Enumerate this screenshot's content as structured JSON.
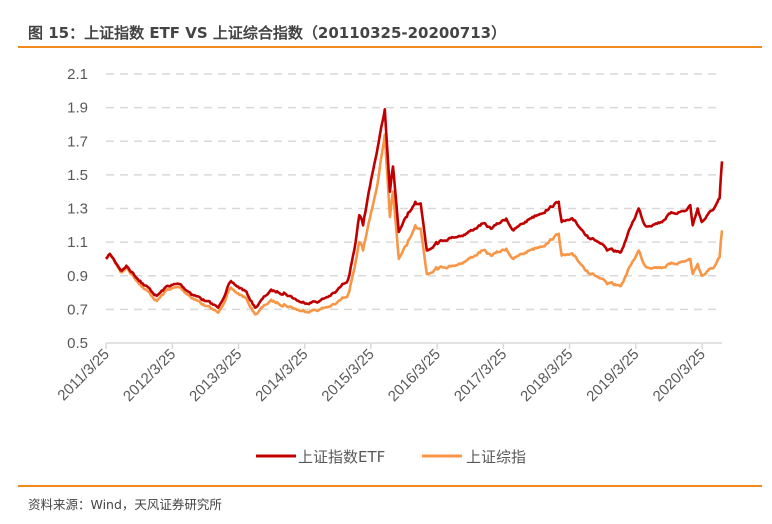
{
  "title": "图 15：上证指数 ETF VS 上证综合指数（20110325-20200713）",
  "source": "资料来源：Wind，天风证券研究所",
  "chart_data": {
    "type": "line",
    "title": "",
    "xlabel": "",
    "ylabel": "",
    "ylim": [
      0.5,
      2.1
    ],
    "yticks": [
      "0.5",
      "0.7",
      "0.9",
      "1.1",
      "1.3",
      "1.5",
      "1.7",
      "1.9",
      "2.1"
    ],
    "xrange": [
      "2011-03-25",
      "2020-07-13"
    ],
    "xticks": [
      "2011/3/25",
      "2012/3/25",
      "2013/3/25",
      "2014/3/25",
      "2015/3/25",
      "2016/3/25",
      "2017/3/25",
      "2018/3/25",
      "2019/3/25",
      "2020/3/25"
    ],
    "grid": "horizontal dashed",
    "legend_position": "bottom",
    "series": [
      {
        "name": "上证指数ETF",
        "color": "#c00000",
        "points": [
          [
            "2011-03-25",
            1.0
          ],
          [
            "2011-04-15",
            1.03
          ],
          [
            "2011-06-20",
            0.93
          ],
          [
            "2011-07-15",
            0.96
          ],
          [
            "2011-09-30",
            0.87
          ],
          [
            "2011-12-30",
            0.78
          ],
          [
            "2012-03-01",
            0.84
          ],
          [
            "2012-05-05",
            0.85
          ],
          [
            "2012-07-01",
            0.8
          ],
          [
            "2012-09-25",
            0.75
          ],
          [
            "2012-12-03",
            0.71
          ],
          [
            "2013-02-05",
            0.86
          ],
          [
            "2013-05-01",
            0.81
          ],
          [
            "2013-06-25",
            0.71
          ],
          [
            "2013-09-15",
            0.81
          ],
          [
            "2013-12-01",
            0.8
          ],
          [
            "2014-03-10",
            0.74
          ],
          [
            "2014-06-15",
            0.75
          ],
          [
            "2014-09-10",
            0.8
          ],
          [
            "2014-11-20",
            0.88
          ],
          [
            "2014-12-31",
            1.1
          ],
          [
            "2015-01-20",
            1.26
          ],
          [
            "2015-02-10",
            1.2
          ],
          [
            "2015-04-01",
            1.5
          ],
          [
            "2015-05-01",
            1.66
          ],
          [
            "2015-06-10",
            1.89
          ],
          [
            "2015-07-08",
            1.4
          ],
          [
            "2015-07-25",
            1.55
          ],
          [
            "2015-08-26",
            1.16
          ],
          [
            "2015-10-10",
            1.25
          ],
          [
            "2015-11-25",
            1.34
          ],
          [
            "2015-12-25",
            1.33
          ],
          [
            "2016-01-28",
            1.05
          ],
          [
            "2016-03-20",
            1.1
          ],
          [
            "2016-06-15",
            1.13
          ],
          [
            "2016-09-01",
            1.15
          ],
          [
            "2016-11-30",
            1.21
          ],
          [
            "2017-01-15",
            1.18
          ],
          [
            "2017-04-10",
            1.24
          ],
          [
            "2017-05-20",
            1.17
          ],
          [
            "2017-09-01",
            1.25
          ],
          [
            "2017-11-15",
            1.29
          ],
          [
            "2018-01-24",
            1.34
          ],
          [
            "2018-02-10",
            1.22
          ],
          [
            "2018-04-15",
            1.23
          ],
          [
            "2018-06-30",
            1.14
          ],
          [
            "2018-09-01",
            1.1
          ],
          [
            "2018-10-18",
            1.05
          ],
          [
            "2019-01-03",
            1.04
          ],
          [
            "2019-03-01",
            1.2
          ],
          [
            "2019-04-10",
            1.3
          ],
          [
            "2019-05-15",
            1.2
          ],
          [
            "2019-08-10",
            1.22
          ],
          [
            "2019-10-01",
            1.27
          ],
          [
            "2019-12-30",
            1.29
          ],
          [
            "2020-01-20",
            1.32
          ],
          [
            "2020-02-03",
            1.2
          ],
          [
            "2020-03-01",
            1.3
          ],
          [
            "2020-03-23",
            1.22
          ],
          [
            "2020-05-30",
            1.3
          ],
          [
            "2020-06-30",
            1.36
          ],
          [
            "2020-07-13",
            1.58
          ]
        ]
      },
      {
        "name": "上证综指",
        "color": "#f79646",
        "points": [
          [
            "2011-03-25",
            1.0
          ],
          [
            "2011-04-15",
            1.03
          ],
          [
            "2011-06-20",
            0.92
          ],
          [
            "2011-07-15",
            0.95
          ],
          [
            "2011-09-30",
            0.85
          ],
          [
            "2011-12-30",
            0.75
          ],
          [
            "2012-03-01",
            0.82
          ],
          [
            "2012-05-05",
            0.83
          ],
          [
            "2012-07-01",
            0.78
          ],
          [
            "2012-09-25",
            0.72
          ],
          [
            "2012-12-03",
            0.68
          ],
          [
            "2013-02-05",
            0.82
          ],
          [
            "2013-05-01",
            0.77
          ],
          [
            "2013-06-25",
            0.67
          ],
          [
            "2013-09-15",
            0.75
          ],
          [
            "2013-12-01",
            0.73
          ],
          [
            "2014-03-10",
            0.69
          ],
          [
            "2014-06-15",
            0.7
          ],
          [
            "2014-09-10",
            0.73
          ],
          [
            "2014-11-20",
            0.79
          ],
          [
            "2014-12-31",
            0.98
          ],
          [
            "2015-01-20",
            1.1
          ],
          [
            "2015-02-10",
            1.05
          ],
          [
            "2015-04-01",
            1.3
          ],
          [
            "2015-05-01",
            1.45
          ],
          [
            "2015-06-10",
            1.74
          ],
          [
            "2015-07-08",
            1.25
          ],
          [
            "2015-07-25",
            1.4
          ],
          [
            "2015-08-26",
            1.0
          ],
          [
            "2015-10-10",
            1.08
          ],
          [
            "2015-11-25",
            1.2
          ],
          [
            "2015-12-25",
            1.18
          ],
          [
            "2016-01-28",
            0.91
          ],
          [
            "2016-03-20",
            0.95
          ],
          [
            "2016-06-15",
            0.96
          ],
          [
            "2016-09-01",
            0.99
          ],
          [
            "2016-11-30",
            1.05
          ],
          [
            "2017-01-15",
            1.02
          ],
          [
            "2017-04-10",
            1.06
          ],
          [
            "2017-05-20",
            1.0
          ],
          [
            "2017-09-01",
            1.06
          ],
          [
            "2017-11-15",
            1.09
          ],
          [
            "2018-01-24",
            1.15
          ],
          [
            "2018-02-10",
            1.02
          ],
          [
            "2018-04-15",
            1.02
          ],
          [
            "2018-06-30",
            0.93
          ],
          [
            "2018-09-01",
            0.89
          ],
          [
            "2018-10-18",
            0.85
          ],
          [
            "2019-01-03",
            0.84
          ],
          [
            "2019-03-01",
            0.97
          ],
          [
            "2019-04-10",
            1.05
          ],
          [
            "2019-05-15",
            0.96
          ],
          [
            "2019-08-10",
            0.95
          ],
          [
            "2019-10-01",
            0.97
          ],
          [
            "2019-12-30",
            0.99
          ],
          [
            "2020-01-20",
            1.0
          ],
          [
            "2020-02-03",
            0.91
          ],
          [
            "2020-03-01",
            0.97
          ],
          [
            "2020-03-23",
            0.9
          ],
          [
            "2020-05-30",
            0.95
          ],
          [
            "2020-06-30",
            1.01
          ],
          [
            "2020-07-13",
            1.17
          ]
        ]
      }
    ]
  }
}
